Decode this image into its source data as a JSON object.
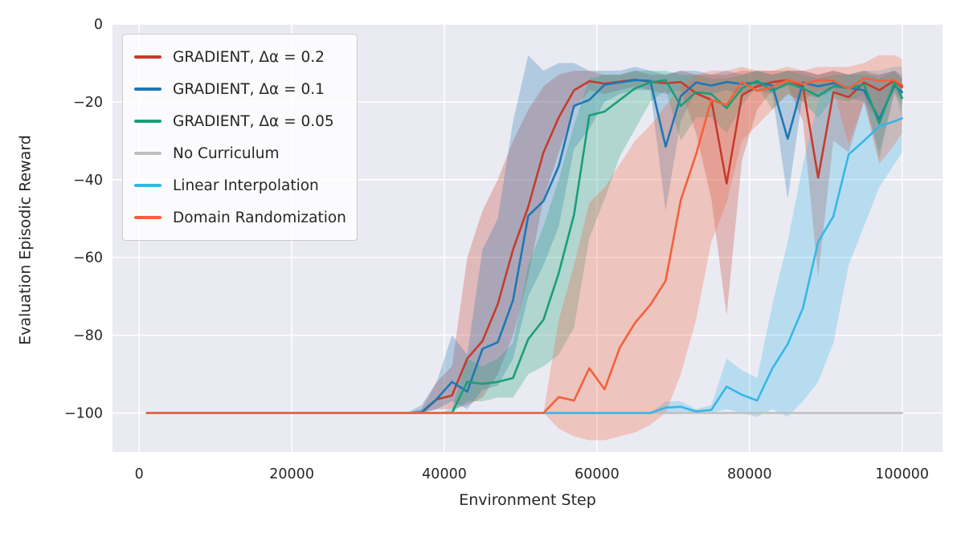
{
  "figure": {
    "xlabel": "Environment Step",
    "ylabel": "Evaluation Episodic Reward"
  },
  "chart_data": {
    "type": "line",
    "title": "",
    "xlabel": "Environment Step",
    "ylabel": "Evaluation Episodic Reward",
    "xlim": [
      -3500,
      105300
    ],
    "ylim": [
      -110,
      0
    ],
    "x_ticks": [
      0,
      20000,
      40000,
      60000,
      80000,
      100000
    ],
    "y_ticks": [
      0,
      -20,
      -40,
      -60,
      -80,
      -100
    ],
    "grid": true,
    "plot_background": "#eaeaf2",
    "grid_color": "#ffffff",
    "legend_position": "upper left",
    "band_opacity": 0.28,
    "x": [
      1000,
      3000,
      5000,
      7000,
      9000,
      11000,
      13000,
      15000,
      17000,
      19000,
      21000,
      23000,
      25000,
      27000,
      29000,
      31000,
      33000,
      35000,
      37000,
      39000,
      41000,
      43000,
      45000,
      47000,
      49000,
      51000,
      53000,
      55000,
      57000,
      59000,
      61000,
      63000,
      65000,
      67000,
      69000,
      71000,
      73000,
      75000,
      77000,
      79000,
      81000,
      83000,
      85000,
      87000,
      89000,
      91000,
      93000,
      95000,
      97000,
      99000,
      100000
    ],
    "series": [
      {
        "name": "GRADIENT, Δα = 0.2",
        "color": "#c53b2c",
        "values": [
          -100,
          -100,
          -100,
          -100,
          -100,
          -100,
          -100,
          -100,
          -100,
          -100,
          -100,
          -100,
          -100,
          -100,
          -100,
          -100,
          -100,
          -100,
          -100,
          -96.5,
          -95.5,
          -86,
          -81.5,
          -72,
          -58,
          -47,
          -33,
          -24,
          -17,
          -14.7,
          -15.3,
          -14.8,
          -14.3,
          -14.8,
          -15.2,
          -14.9,
          -17.8,
          -19.5,
          -41,
          -18.3,
          -16,
          -14.9,
          -14.4,
          -16,
          -39.5,
          -17.5,
          -18.8,
          -15,
          -17,
          -14.5,
          -16.2
        ],
        "band_lo": [
          -100,
          -100,
          -100,
          -100,
          -100,
          -100,
          -100,
          -100,
          -100,
          -100,
          -100,
          -100,
          -100,
          -100,
          -100,
          -100,
          -100,
          -100,
          -100,
          -99,
          -99,
          -98,
          -96,
          -90,
          -80,
          -65,
          -45,
          -33,
          -22,
          -17,
          -18,
          -17,
          -16,
          -17,
          -18,
          -17,
          -28,
          -45,
          -75,
          -35,
          -22,
          -17,
          -16,
          -25,
          -65,
          -30,
          -33,
          -20,
          -25,
          -17,
          -20
        ],
        "band_hi": [
          -100,
          -100,
          -100,
          -100,
          -100,
          -100,
          -100,
          -100,
          -100,
          -100,
          -100,
          -100,
          -100,
          -100,
          -100,
          -100,
          -100,
          -100,
          -99,
          -92,
          -88,
          -60,
          -48,
          -40,
          -30,
          -22,
          -16,
          -13,
          -12,
          -12,
          -13,
          -13,
          -12,
          -13,
          -13,
          -12,
          -13,
          -13,
          -13,
          -12,
          -12,
          -12,
          -12,
          -12,
          -13,
          -12,
          -13,
          -12,
          -13,
          -12,
          -13
        ]
      },
      {
        "name": "GRADIENT, Δα = 0.1",
        "color": "#1f77b4",
        "values": [
          -100,
          -100,
          -100,
          -100,
          -100,
          -100,
          -100,
          -100,
          -100,
          -100,
          -100,
          -100,
          -100,
          -100,
          -100,
          -100,
          -100,
          -100,
          -99.8,
          -96.4,
          -92,
          -94.5,
          -83.5,
          -81.8,
          -71,
          -49.3,
          -45.5,
          -36.5,
          -21,
          -19.5,
          -15.6,
          -15,
          -14.4,
          -14.6,
          -31.5,
          -18.5,
          -15,
          -15.8,
          -14.9,
          -15.4,
          -15,
          -15.8,
          -29.5,
          -15,
          -16,
          -15.2,
          -16.4,
          -17,
          -24.5,
          -15.8,
          -17.5
        ],
        "band_lo": [
          -100,
          -100,
          -100,
          -100,
          -100,
          -100,
          -100,
          -100,
          -100,
          -100,
          -100,
          -100,
          -100,
          -100,
          -100,
          -100,
          -100,
          -100,
          -100,
          -99,
          -97,
          -99,
          -94,
          -93,
          -86,
          -70,
          -62,
          -52,
          -32,
          -27,
          -20,
          -18,
          -17,
          -17,
          -48,
          -25,
          -17,
          -18,
          -17,
          -18,
          -17,
          -18,
          -45,
          -18,
          -19,
          -17,
          -19,
          -20,
          -33,
          -18,
          -21
        ],
        "band_hi": [
          -100,
          -100,
          -100,
          -100,
          -100,
          -100,
          -100,
          -100,
          -100,
          -100,
          -100,
          -100,
          -100,
          -100,
          -100,
          -100,
          -100,
          -100,
          -98,
          -92,
          -80,
          -85,
          -58,
          -50,
          -25,
          -8,
          -12,
          -10,
          -10,
          -12,
          -12,
          -12,
          -11,
          -12,
          -13,
          -12,
          -12,
          -13,
          -12,
          -13,
          -12,
          -13,
          -12,
          -12,
          -13,
          -12,
          -13,
          -13,
          -13,
          -12,
          -14
        ]
      },
      {
        "name": "GRADIENT, Δα = 0.05",
        "color": "#1b9e77",
        "values": [
          -100,
          -100,
          -100,
          -100,
          -100,
          -100,
          -100,
          -100,
          -100,
          -100,
          -100,
          -100,
          -100,
          -100,
          -100,
          -100,
          -100,
          -100,
          -100,
          -100,
          -100,
          -92,
          -92.5,
          -92,
          -91,
          -81,
          -76,
          -64,
          -49,
          -23.5,
          -22.5,
          -19.5,
          -16.5,
          -15,
          -14.4,
          -21,
          -17.5,
          -18,
          -21.6,
          -16.5,
          -14.6,
          -17.2,
          -15.2,
          -16.5,
          -18.5,
          -16,
          -16.5,
          -15.5,
          -25.5,
          -15,
          -19
        ],
        "band_lo": [
          -100,
          -100,
          -100,
          -100,
          -100,
          -100,
          -100,
          -100,
          -100,
          -100,
          -100,
          -100,
          -100,
          -100,
          -100,
          -100,
          -100,
          -100,
          -100,
          -100,
          -100,
          -97,
          -97,
          -96,
          -96,
          -90,
          -88,
          -85,
          -78,
          -55,
          -45,
          -34,
          -27,
          -20,
          -17,
          -30,
          -24,
          -24,
          -28,
          -21,
          -16,
          -22,
          -18,
          -20,
          -24,
          -19,
          -20,
          -18,
          -35,
          -17,
          -24
        ],
        "band_hi": [
          -100,
          -100,
          -100,
          -100,
          -100,
          -100,
          -100,
          -100,
          -100,
          -100,
          -100,
          -100,
          -100,
          -100,
          -100,
          -100,
          -100,
          -100,
          -100,
          -100,
          -99,
          -86,
          -88,
          -86,
          -82,
          -62,
          -52,
          -40,
          -26,
          -14,
          -13,
          -13,
          -12,
          -12,
          -12,
          -13,
          -13,
          -14,
          -14,
          -13,
          -12,
          -13,
          -12,
          -13,
          -14,
          -13,
          -13,
          -12,
          -14,
          -12,
          -14
        ]
      },
      {
        "name": "No Curriculum",
        "color": "#bfbfbf",
        "values": [
          -100,
          -100,
          -100,
          -100,
          -100,
          -100,
          -100,
          -100,
          -100,
          -100,
          -100,
          -100,
          -100,
          -100,
          -100,
          -100,
          -100,
          -100,
          -100,
          -100,
          -100,
          -100,
          -100,
          -100,
          -100,
          -100,
          -100,
          -100,
          -100,
          -100,
          -100,
          -100,
          -100,
          -100,
          -100,
          -100,
          -100,
          -100,
          -100,
          -100,
          -100,
          -100,
          -100,
          -100,
          -100,
          -100,
          -100,
          -100,
          -100,
          -100,
          -100
        ],
        "band_lo": [
          -100,
          -100,
          -100,
          -100,
          -100,
          -100,
          -100,
          -100,
          -100,
          -100,
          -100,
          -100,
          -100,
          -100,
          -100,
          -100,
          -100,
          -100,
          -100,
          -100,
          -100,
          -100,
          -100,
          -100,
          -100,
          -100,
          -100,
          -100,
          -100,
          -100,
          -100,
          -100,
          -100,
          -100,
          -100,
          -100,
          -100,
          -100,
          -100,
          -100,
          -100,
          -100,
          -100,
          -100,
          -100,
          -100,
          -100,
          -100,
          -100,
          -100,
          -100
        ],
        "band_hi": [
          -100,
          -100,
          -100,
          -100,
          -100,
          -100,
          -100,
          -100,
          -100,
          -100,
          -100,
          -100,
          -100,
          -100,
          -100,
          -100,
          -100,
          -100,
          -100,
          -100,
          -100,
          -100,
          -100,
          -100,
          -100,
          -100,
          -100,
          -100,
          -100,
          -100,
          -100,
          -100,
          -100,
          -100,
          -100,
          -100,
          -100,
          -100,
          -100,
          -100,
          -100,
          -100,
          -100,
          -100,
          -100,
          -100,
          -100,
          -100,
          -100,
          -100,
          -100
        ]
      },
      {
        "name": "Linear Interpolation",
        "color": "#35b7e8",
        "values": [
          -100,
          -100,
          -100,
          -100,
          -100,
          -100,
          -100,
          -100,
          -100,
          -100,
          -100,
          -100,
          -100,
          -100,
          -100,
          -100,
          -100,
          -100,
          -100,
          -100,
          -100,
          -100,
          -100,
          -100,
          -100,
          -100,
          -100,
          -100,
          -100,
          -100,
          -100,
          -100,
          -100,
          -100,
          -98.6,
          -98.4,
          -99.6,
          -99.2,
          -93.2,
          -95.3,
          -96.8,
          -88.5,
          -82.3,
          -73,
          -56,
          -49.4,
          -33.5,
          -30,
          -26.3,
          -25,
          -24.2
        ],
        "band_lo": [
          -100,
          -100,
          -100,
          -100,
          -100,
          -100,
          -100,
          -100,
          -100,
          -100,
          -100,
          -100,
          -100,
          -100,
          -100,
          -100,
          -100,
          -100,
          -100,
          -100,
          -100,
          -100,
          -100,
          -100,
          -100,
          -100,
          -100,
          -100,
          -100,
          -100,
          -100,
          -100,
          -100,
          -100,
          -100,
          -100,
          -100,
          -100,
          -99,
          -100,
          -101,
          -99,
          -101,
          -97,
          -92,
          -82,
          -62,
          -52,
          -42,
          -36,
          -33
        ],
        "band_hi": [
          -100,
          -100,
          -100,
          -100,
          -100,
          -100,
          -100,
          -100,
          -100,
          -100,
          -100,
          -100,
          -100,
          -100,
          -100,
          -100,
          -100,
          -100,
          -100,
          -100,
          -100,
          -100,
          -100,
          -100,
          -100,
          -100,
          -100,
          -100,
          -100,
          -100,
          -100,
          -100,
          -100,
          -100,
          -97,
          -97,
          -99,
          -98,
          -86,
          -89,
          -91,
          -72,
          -56,
          -36,
          -20,
          -15,
          -13,
          -12,
          -12,
          -11,
          -11
        ]
      },
      {
        "name": "Domain Randomization",
        "color": "#f3613a",
        "values": [
          -100,
          -100,
          -100,
          -100,
          -100,
          -100,
          -100,
          -100,
          -100,
          -100,
          -100,
          -100,
          -100,
          -100,
          -100,
          -100,
          -100,
          -100,
          -100,
          -100,
          -100,
          -100,
          -100,
          -100,
          -100,
          -100,
          -100,
          -95.9,
          -96.8,
          -88.5,
          -93.9,
          -83.2,
          -76.8,
          -72.2,
          -66,
          -45.2,
          -33.5,
          -19.5,
          -20.8,
          -14.9,
          -17.2,
          -16.2,
          -14.4,
          -15.4,
          -14.4,
          -14.6,
          -16.6,
          -13.9,
          -14.6,
          -14.4,
          -15.7
        ],
        "band_lo": [
          -100,
          -100,
          -100,
          -100,
          -100,
          -100,
          -100,
          -100,
          -100,
          -100,
          -100,
          -100,
          -100,
          -100,
          -100,
          -100,
          -100,
          -100,
          -100,
          -100,
          -100,
          -100,
          -100,
          -100,
          -100,
          -100,
          -100,
          -104,
          -106,
          -107,
          -107,
          -106,
          -105,
          -103,
          -100,
          -90,
          -76,
          -56,
          -46,
          -30,
          -26,
          -22,
          -18,
          -20,
          -17,
          -17,
          -31,
          -20,
          -36,
          -31,
          -28
        ],
        "band_hi": [
          -100,
          -100,
          -100,
          -100,
          -100,
          -100,
          -100,
          -100,
          -100,
          -100,
          -100,
          -100,
          -100,
          -100,
          -100,
          -100,
          -100,
          -100,
          -100,
          -100,
          -100,
          -100,
          -100,
          -100,
          -100,
          -100,
          -100,
          -76,
          -62,
          -46,
          -42,
          -36,
          -30,
          -26,
          -21,
          -16,
          -13,
          -12,
          -12,
          -11,
          -12,
          -12,
          -11,
          -12,
          -11,
          -11,
          -11,
          -10,
          -8,
          -8,
          -9
        ]
      }
    ]
  }
}
